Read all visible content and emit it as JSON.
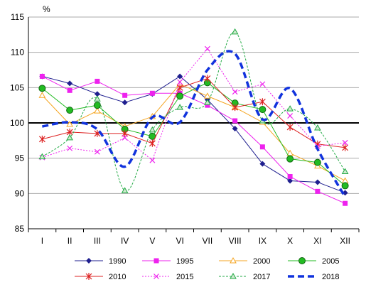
{
  "chart_data": {
    "type": "line",
    "ylabel": "%",
    "ylim": [
      85,
      115
    ],
    "yticks": [
      85,
      90,
      95,
      100,
      105,
      110,
      115
    ],
    "reference_line": 100,
    "categories": [
      "I",
      "II",
      "III",
      "IV",
      "V",
      "VI",
      "VII",
      "VIII",
      "IX",
      "X",
      "XI",
      "XII"
    ],
    "grid": "horizontal",
    "legend_position": "bottom",
    "series": [
      {
        "name": "1990",
        "color": "#1f1f8f",
        "marker": "diamond",
        "dash": "solid",
        "smooth": false,
        "values": [
          106.6,
          105.6,
          104.1,
          102.9,
          104.1,
          106.6,
          103.3,
          99.2,
          94.2,
          91.8,
          91.6,
          90.1
        ]
      },
      {
        "name": "1995",
        "color": "#ee22ee",
        "marker": "square",
        "dash": "solid",
        "smooth": false,
        "values": [
          106.6,
          104.6,
          105.9,
          103.9,
          104.2,
          104.2,
          102.5,
          100.3,
          96.6,
          92.4,
          90.3,
          88.6
        ]
      },
      {
        "name": "2000",
        "color": "#f5a623",
        "marker": "triangle",
        "dash": "solid",
        "smooth": false,
        "values": [
          103.9,
          99.8,
          101.7,
          99.5,
          100.9,
          105.5,
          103.8,
          102.2,
          100.1,
          95.7,
          93.9,
          91.8
        ]
      },
      {
        "name": "2005",
        "color": "#22bb22",
        "marker": "circle",
        "dash": "solid",
        "smooth": false,
        "values": [
          104.9,
          101.8,
          102.5,
          99.1,
          98.1,
          103.8,
          105.7,
          102.8,
          101.9,
          94.9,
          94.4,
          91.1
        ]
      },
      {
        "name": "2010",
        "color": "#dd2222",
        "marker": "star",
        "dash": "solid",
        "smooth": false,
        "values": [
          97.7,
          98.7,
          98.5,
          98.5,
          97.1,
          105.0,
          106.3,
          102.2,
          103.0,
          99.4,
          97.0,
          96.5
        ]
      },
      {
        "name": "2015",
        "color": "#ee22ee",
        "marker": "x",
        "dash": "dotted",
        "smooth": false,
        "values": [
          95.1,
          96.4,
          95.9,
          97.9,
          94.7,
          105.8,
          110.5,
          104.4,
          105.5,
          101.0,
          96.7,
          97.2
        ]
      },
      {
        "name": "2017",
        "color": "#22aa44",
        "marker": "triangle-open",
        "dash": "dashed",
        "smooth": true,
        "values": [
          95.2,
          97.9,
          103.4,
          90.4,
          99.0,
          102.2,
          102.9,
          112.9,
          100.3,
          102.0,
          99.3,
          93.1
        ]
      },
      {
        "name": "2018",
        "color": "#1133dd",
        "marker": "none",
        "dash": "bold-dashed",
        "smooth": true,
        "values": [
          99.5,
          100.1,
          99.1,
          93.8,
          100.8,
          100.1,
          107.5,
          109.8,
          100.5,
          104.9,
          96.3,
          89.5
        ]
      }
    ]
  }
}
